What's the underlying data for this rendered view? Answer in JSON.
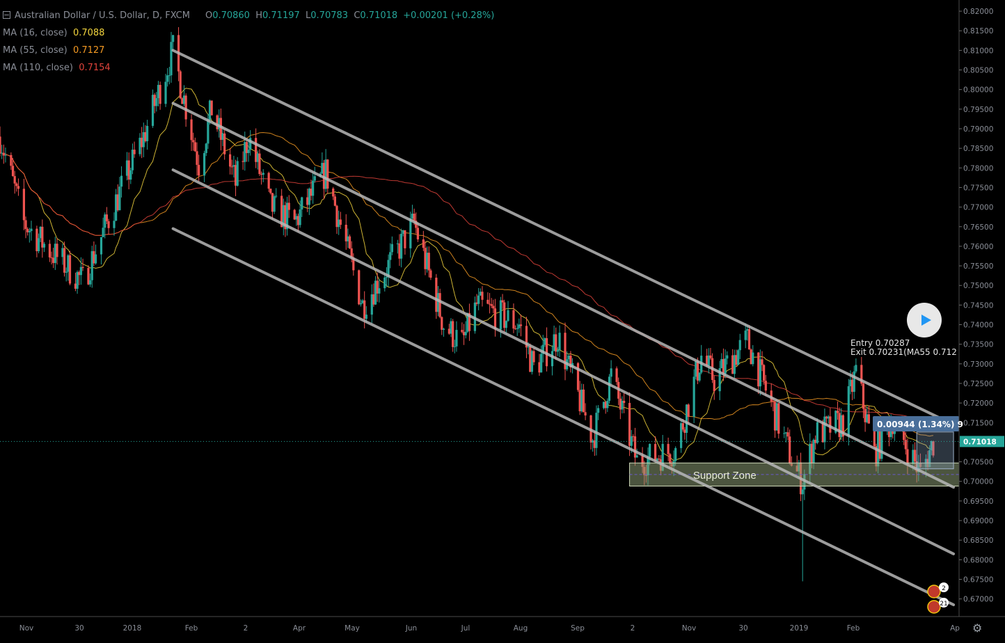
{
  "header": {
    "symbol": "Australian Dollar / U.S. Dollar, D, FXCM",
    "open_label": "O",
    "open": "0.70860",
    "high_label": "H",
    "high": "0.71197",
    "low_label": "L",
    "low": "0.70783",
    "close_label": "C",
    "close": "0.71018",
    "change": "+0.00201 (+0.28%)"
  },
  "indicators": [
    {
      "label": "MA (16, close)",
      "value": "0.7088",
      "color": "#f2d43d"
    },
    {
      "label": "MA (55, close)",
      "value": "0.7127",
      "color": "#f59a23"
    },
    {
      "label": "MA (110, close)",
      "value": "0.7154",
      "color": "#e0433b"
    }
  ],
  "annotations": {
    "support_zone": "Support Zone",
    "entry": "Entry 0.70287",
    "exit": "Exit 0.70231(MA55 0.712",
    "measure": "0.00944 (1.34%) 9",
    "price_label": "0.71018",
    "event_counts": [
      "2",
      "21"
    ]
  },
  "colors": {
    "background": "#000000",
    "up": "#26a69a",
    "down": "#ef5350",
    "channel": "#b8b8b8",
    "axis_text": "#8a8e97",
    "current_price": "#26a69a",
    "measure_bg": "#4a6f9a",
    "zone_fill": "#8a9a72"
  },
  "chart_data": {
    "type": "candlestick",
    "title": "Australian Dollar / U.S. Dollar, D, FXCM",
    "ylim": [
      0.6655,
      0.8225
    ],
    "y_ticks": [
      "0.82000",
      "0.81500",
      "0.81000",
      "0.80500",
      "0.80000",
      "0.79500",
      "0.79000",
      "0.78500",
      "0.78000",
      "0.77500",
      "0.77000",
      "0.76500",
      "0.76000",
      "0.75500",
      "0.75000",
      "0.74500",
      "0.74000",
      "0.73500",
      "0.73000",
      "0.72500",
      "0.72000",
      "0.71500",
      "0.71000",
      "0.70500",
      "0.70000",
      "0.69500",
      "0.69000",
      "0.68500",
      "0.68000",
      "0.67500",
      "0.67000"
    ],
    "x_ticks": [
      "Nov",
      "30",
      "2018",
      "Feb",
      "2",
      "Apr",
      "May",
      "Jun",
      "Jul",
      "Aug",
      "Sep",
      "2",
      "Nov",
      "30",
      "2019",
      "Feb",
      "Ap"
    ],
    "x_range": [
      "2017-10-24",
      "2019-03-29"
    ],
    "price_path": [
      [
        "2017-10-24",
        0.788
      ],
      [
        "2017-11-06",
        0.766
      ],
      [
        "2017-11-22",
        0.758
      ],
      [
        "2017-12-08",
        0.751
      ],
      [
        "2017-12-22",
        0.767
      ],
      [
        "2018-01-10",
        0.788
      ],
      [
        "2018-01-26",
        0.81
      ],
      [
        "2018-02-09",
        0.781
      ],
      [
        "2018-02-16",
        0.795
      ],
      [
        "2018-03-01",
        0.776
      ],
      [
        "2018-03-08",
        0.788
      ],
      [
        "2018-03-20",
        0.77
      ],
      [
        "2018-04-02",
        0.766
      ],
      [
        "2018-04-19",
        0.779
      ],
      [
        "2018-05-09",
        0.745
      ],
      [
        "2018-05-23",
        0.755
      ],
      [
        "2018-06-06",
        0.766
      ],
      [
        "2018-06-22",
        0.74
      ],
      [
        "2018-07-02",
        0.735
      ],
      [
        "2018-07-10",
        0.745
      ],
      [
        "2018-08-02",
        0.74
      ],
      [
        "2018-08-10",
        0.729
      ],
      [
        "2018-08-23",
        0.737
      ],
      [
        "2018-09-11",
        0.711
      ],
      [
        "2018-09-21",
        0.727
      ],
      [
        "2018-10-05",
        0.705
      ],
      [
        "2018-10-26",
        0.708
      ],
      [
        "2018-11-09",
        0.732
      ],
      [
        "2018-11-16",
        0.726
      ],
      [
        "2018-12-04",
        0.736
      ],
      [
        "2018-12-31",
        0.702
      ],
      [
        "2019-01-03",
        0.7
      ],
      [
        "2019-01-10",
        0.712
      ],
      [
        "2019-01-25",
        0.715
      ],
      [
        "2019-02-01",
        0.728
      ],
      [
        "2019-02-11",
        0.707
      ],
      [
        "2019-02-21",
        0.716
      ],
      [
        "2019-03-08",
        0.702
      ],
      [
        "2019-03-15",
        0.71
      ]
    ],
    "spike_low": [
      "2019-01-03",
      0.6745
    ],
    "moving_averages": [
      {
        "name": "MA (16, close)",
        "last": 0.7088
      },
      {
        "name": "MA (55, close)",
        "last": 0.7127
      },
      {
        "name": "MA (110, close)",
        "last": 0.7154
      }
    ],
    "channel_lines": [
      {
        "from": [
          "2018-01-26",
          0.81
        ],
        "to": [
          "2019-03-26",
          0.7145
        ]
      },
      {
        "from": [
          "2018-01-26",
          0.7965
        ],
        "to": [
          "2019-03-26",
          0.6985
        ]
      },
      {
        "from": [
          "2018-01-26",
          0.7795
        ],
        "to": [
          "2019-03-26",
          0.6815
        ]
      },
      {
        "from": [
          "2018-01-26",
          0.7645
        ],
        "to": [
          "2019-03-26",
          0.6685
        ]
      }
    ],
    "support_zone": {
      "x": [
        "2018-10-01",
        "2019-03-29"
      ],
      "y": [
        0.6988,
        0.7047
      ],
      "label": "Support Zone"
    },
    "current_price": 0.71018,
    "measure": {
      "x": [
        "2019-03-06",
        "2019-03-26"
      ],
      "y": [
        0.7032,
        0.7126
      ]
    }
  }
}
